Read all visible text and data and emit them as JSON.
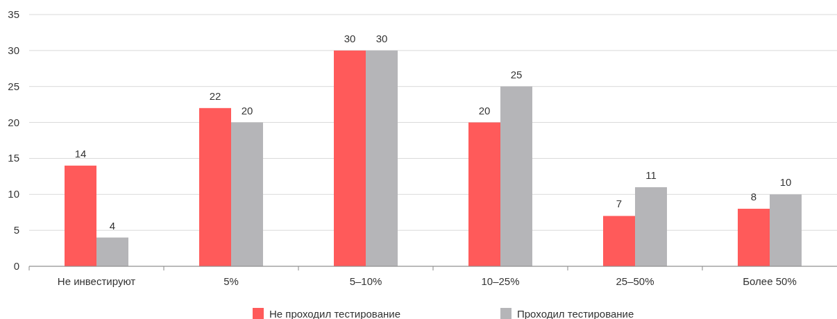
{
  "chart_data": {
    "type": "bar",
    "categories": [
      "Не инвестируют",
      "5%",
      "5–10%",
      "10–25%",
      "25–50%",
      "Более 50%"
    ],
    "series": [
      {
        "name": "Не проходил тестирование",
        "color": "#ff5a5a",
        "values": [
          14,
          22,
          30,
          20,
          7,
          8
        ]
      },
      {
        "name": "Проходил тестирование",
        "color": "#b5b5b8",
        "values": [
          4,
          20,
          30,
          25,
          11,
          10
        ]
      }
    ],
    "ylim": [
      0,
      35
    ],
    "yticks": [
      0,
      5,
      10,
      15,
      20,
      25,
      30,
      35
    ],
    "grid": "y",
    "legend": "bottom",
    "data_labels": true
  }
}
